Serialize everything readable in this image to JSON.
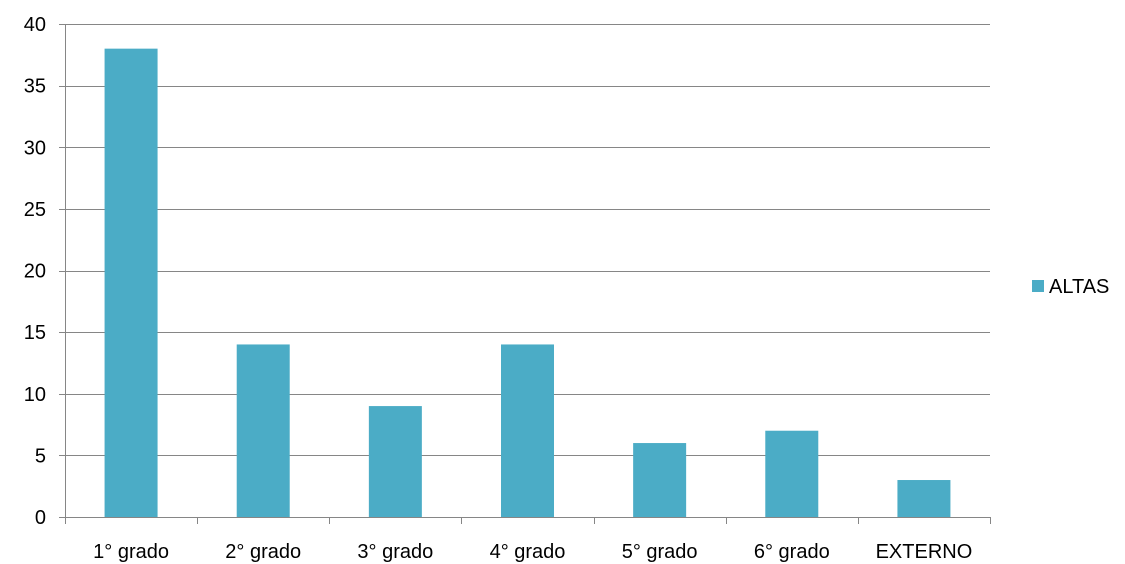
{
  "chart_data": {
    "type": "bar",
    "categories": [
      "1° grado",
      "2° grado",
      "3° grado",
      "4° grado",
      "5° grado",
      "6° grado",
      "EXTERNO"
    ],
    "series": [
      {
        "name": "ALTAS",
        "values": [
          38,
          14,
          9,
          14,
          6,
          7,
          3
        ],
        "color": "#4BACC6"
      }
    ],
    "title": "",
    "xlabel": "",
    "ylabel": "",
    "ylim": [
      0,
      40
    ],
    "yticks": [
      0,
      5,
      10,
      15,
      20,
      25,
      30,
      35,
      40
    ],
    "grid": true,
    "legend": "right"
  },
  "colors": {
    "bar": "#4BACC6",
    "grid": "#868686",
    "axis": "#868686",
    "text": "#000000"
  }
}
